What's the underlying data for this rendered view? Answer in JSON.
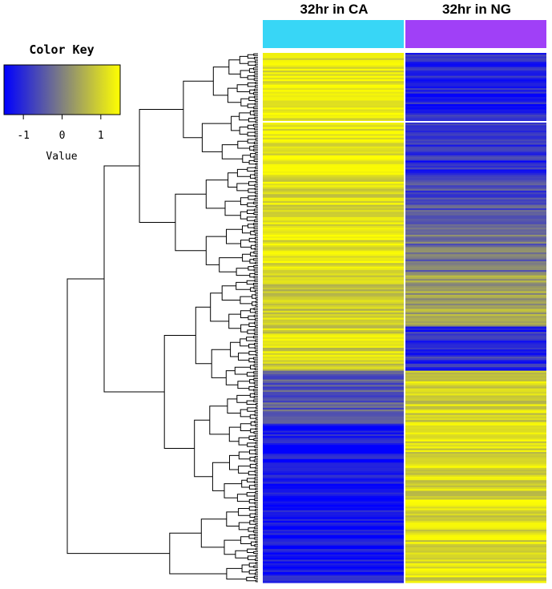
{
  "chart_data": {
    "type": "heatmap",
    "title": "",
    "columns": [
      "32hr in CA",
      "32hr in NG"
    ],
    "column_colors": [
      "#38d6f6",
      "#a040f7"
    ],
    "color_scale": {
      "low": "#0000ff",
      "mid": "#808080",
      "high": "#ffff00",
      "range": [
        -1.5,
        1.5
      ],
      "ticks": [
        -1,
        0,
        1
      ],
      "tick_labels": [
        "-1",
        "0",
        "1"
      ]
    },
    "color_key": {
      "title": "Color Key",
      "xlabel": "Value"
    },
    "row_count": 300,
    "row_blocks": [
      {
        "rows": 30,
        "CA": 1.2,
        "NG": -1.1
      },
      {
        "rows": 40,
        "CA": 1.3,
        "NG": -1.0
      },
      {
        "rows": 25,
        "CA": 1.1,
        "NG": -0.6
      },
      {
        "rows": 30,
        "CA": 1.2,
        "NG": -0.2
      },
      {
        "rows": 30,
        "CA": 0.9,
        "NG": 0.4
      },
      {
        "rows": 25,
        "CA": 1.0,
        "NG": -1.0
      },
      {
        "rows": 30,
        "CA": -0.4,
        "NG": 1.0
      },
      {
        "rows": 90,
        "CA": -1.3,
        "NG": 1.1
      }
    ]
  }
}
